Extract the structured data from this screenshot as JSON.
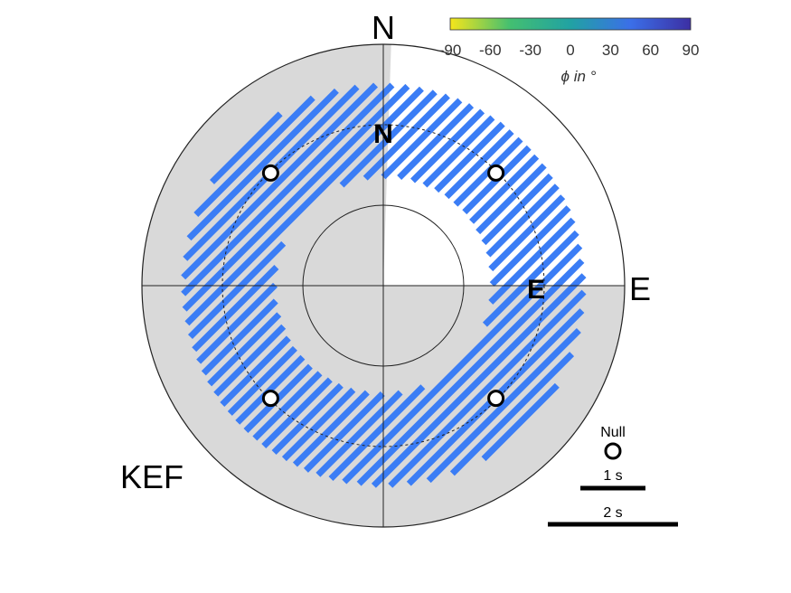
{
  "chart_data": {
    "type": "polar-stereonet",
    "directions": {
      "north": "N",
      "east": "E"
    },
    "inner_labels": {
      "north": "N",
      "east": "E"
    },
    "station": "KEF",
    "colorbar": {
      "ticks": [
        "-90",
        "-60",
        "-30",
        "0",
        "30",
        "60",
        "90"
      ],
      "label": "ϕ in °",
      "colors": [
        "#f5e51b",
        "#43bf71",
        "#21a2a3",
        "#3b6fe8",
        "#3c2fa3"
      ],
      "range": [
        -90,
        90
      ]
    },
    "legend": {
      "null_label": "Null",
      "scale_1": "1 s",
      "scale_2": "2 s"
    },
    "null_points": [
      {
        "backazimuth": 45,
        "ring": 0.66
      },
      {
        "backazimuth": 135,
        "ring": 0.66
      },
      {
        "backazimuth": 225,
        "ring": 0.66
      },
      {
        "backazimuth": 315,
        "ring": 0.66
      }
    ],
    "measurements": {
      "phi_deg": 45,
      "color": "#3b7df5",
      "band_inner": 0.45,
      "band_outer": 0.83
    },
    "shading": {
      "color": "#d9d9d9"
    }
  }
}
